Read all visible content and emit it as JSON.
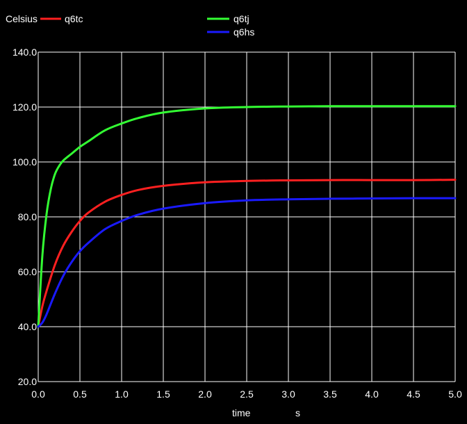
{
  "chart_data": {
    "type": "line",
    "ylabel": "Celsius",
    "xlabel": "time",
    "xunit": "s",
    "xlim": [
      0.0,
      5.0
    ],
    "ylim": [
      20.0,
      140.0
    ],
    "xticks": [
      "0.0",
      "0.5",
      "1.0",
      "1.5",
      "2.0",
      "2.5",
      "3.0",
      "3.5",
      "4.0",
      "4.5",
      "5.0"
    ],
    "yticks": [
      "20.0",
      "40.0",
      "60.0",
      "80.0",
      "100.0",
      "120.0",
      "140.0"
    ],
    "grid": true,
    "legend_position": "top",
    "colors": {
      "background": "#000000",
      "grid": "#ffffff",
      "text": "#ffffff"
    },
    "series": [
      {
        "name": "q6tc",
        "color": "#ff2020",
        "x": [
          0.0,
          0.05,
          0.1,
          0.2,
          0.3,
          0.4,
          0.5,
          0.6,
          0.8,
          1.0,
          1.2,
          1.5,
          2.0,
          2.5,
          3.0,
          3.5,
          4.0,
          4.5,
          5.0
        ],
        "y": [
          40.0,
          47.5,
          53.0,
          62.5,
          69.5,
          74.5,
          78.5,
          81.5,
          85.5,
          88.0,
          89.8,
          91.3,
          92.6,
          93.1,
          93.3,
          93.4,
          93.4,
          93.4,
          93.5
        ]
      },
      {
        "name": "q6tj",
        "color": "#33ff33",
        "x": [
          0.0,
          0.05,
          0.1,
          0.15,
          0.2,
          0.25,
          0.3,
          0.4,
          0.5,
          0.6,
          0.8,
          1.0,
          1.2,
          1.5,
          2.0,
          2.5,
          3.0,
          3.5,
          4.0,
          4.5,
          5.0
        ],
        "y": [
          40.0,
          66.0,
          81.0,
          90.0,
          95.5,
          98.5,
          100.5,
          103.0,
          105.5,
          107.5,
          111.5,
          114.0,
          116.0,
          118.0,
          119.5,
          120.0,
          120.2,
          120.3,
          120.3,
          120.3,
          120.3
        ]
      },
      {
        "name": "q6hs",
        "color": "#1a1aff",
        "x": [
          0.0,
          0.05,
          0.1,
          0.2,
          0.3,
          0.4,
          0.5,
          0.6,
          0.8,
          1.0,
          1.2,
          1.5,
          2.0,
          2.5,
          3.0,
          3.5,
          4.0,
          4.5,
          5.0
        ],
        "y": [
          40.0,
          41.5,
          44.5,
          52.0,
          58.5,
          63.5,
          67.5,
          70.5,
          75.5,
          78.5,
          80.8,
          83.0,
          85.0,
          86.0,
          86.4,
          86.6,
          86.7,
          86.8,
          86.8
        ]
      }
    ]
  }
}
